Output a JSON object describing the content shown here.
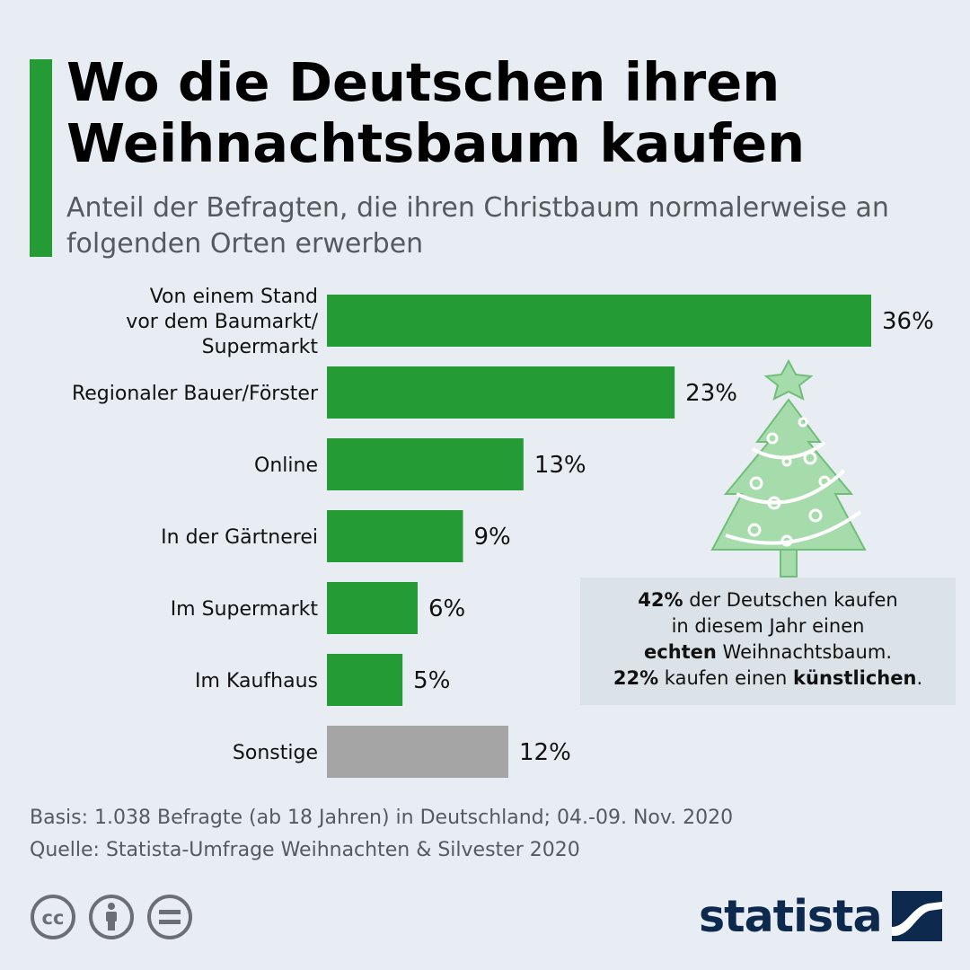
{
  "header": {
    "title": "Wo die Deutschen ihren Weihnachtsbaum kaufen",
    "subtitle": "Anteil der Befragten, die ihren Christbaum normalerweise an folgenden Orten erwerben"
  },
  "colors": {
    "accent": "#259b35",
    "bar": "#259b35",
    "bar_other": "#a5a5a5",
    "brand": "#0d2a4e",
    "tree": "#a6dcab"
  },
  "chart_data": {
    "type": "bar",
    "orientation": "horizontal",
    "categories": [
      [
        "Von einem Stand",
        "vor dem Baumarkt/",
        "Supermarkt"
      ],
      [
        "Regionaler Bauer/Förster"
      ],
      [
        "Online"
      ],
      [
        "In der Gärtnerei"
      ],
      [
        "Im Supermarkt"
      ],
      [
        "Im Kaufhaus"
      ],
      [
        "Sonstige"
      ]
    ],
    "values": [
      36,
      23,
      13,
      9,
      6,
      5,
      12
    ],
    "value_labels": [
      "36%",
      "23%",
      "13%",
      "9%",
      "6%",
      "5%",
      "12%"
    ],
    "unit": "%",
    "xlim": [
      0,
      36
    ],
    "grid": false,
    "legend": "none"
  },
  "infobox": {
    "line1_bold": "42%",
    "line1_rest": " der Deutschen kaufen",
    "line2": "in diesem Jahr einen",
    "line3_bold": "echten",
    "line3_rest": " Weihnachtsbaum.",
    "line4_bold1": "22%",
    "line4_mid": " kaufen einen ",
    "line4_bold2": "künstlichen",
    "line4_end": "."
  },
  "footnote": {
    "basis": "Basis: 1.038 Befragte (ab 18 Jahren) in Deutschland; 04.-09. Nov. 2020",
    "source": "Quelle: Statista-Umfrage Weihnachten & Silvester 2020"
  },
  "license_icons": [
    "cc-icon",
    "attribution-icon",
    "no-derivatives-icon"
  ],
  "brand": {
    "name": "statista",
    "icon": "statista-logo-icon"
  }
}
